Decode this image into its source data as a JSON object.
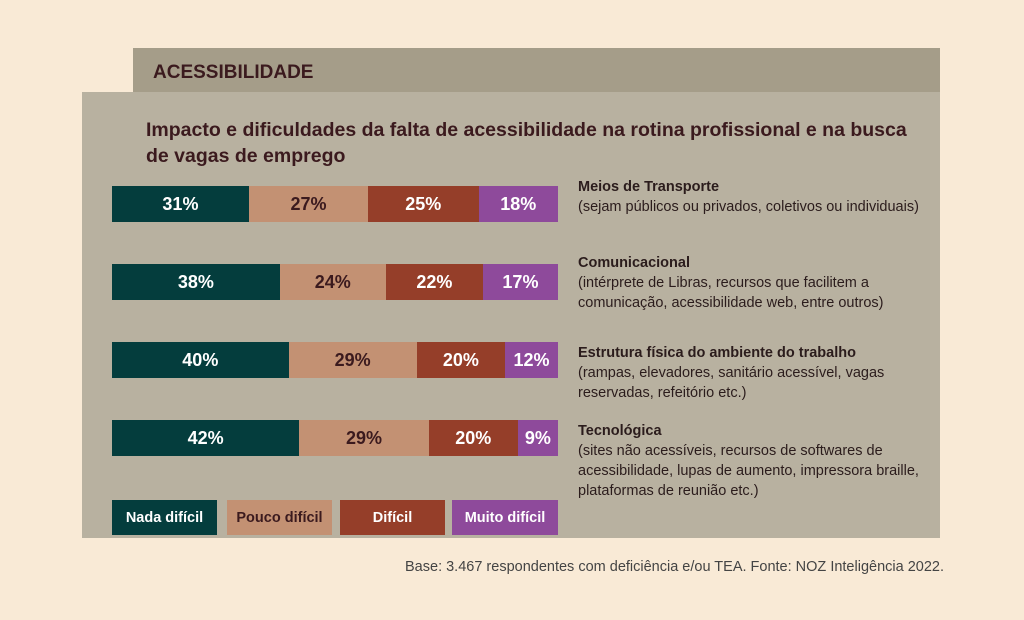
{
  "header": "ACESSIBILIDADE",
  "footer": "Base: 3.467 respondentes com deficiência e/ou TEA. Fonte: NOZ Inteligência 2022.",
  "chart_data": {
    "type": "bar",
    "orientation": "horizontal-stacked-100",
    "title": "Impacto e dificuldades da falta de acessibilidade na rotina profissional e na busca de vagas de emprego",
    "categories": [
      {
        "name": "Meios de Transporte",
        "desc": "(sejam públicos ou privados, coletivos ou individuais)"
      },
      {
        "name": "Comunicacional",
        "desc": "(intérprete de Libras, recursos que facilitem a comunicação, acessibilidade web, entre outros)"
      },
      {
        "name": "Estrutura física do ambiente do trabalho",
        "desc": "(rampas, elevadores, sanitário acessível, vagas reservadas, refeitório etc.)"
      },
      {
        "name": "Tecnológica",
        "desc": "(sites não acessíveis, recursos de softwares de acessibilidade, lupas de aumento, impressora braille, plataformas de reunião etc.)"
      }
    ],
    "series": [
      {
        "name": "Nada difícil",
        "color": "#043d3d",
        "text": "#ffffff",
        "values": [
          31,
          38,
          40,
          42
        ]
      },
      {
        "name": "Pouco difícil",
        "color": "#c39173",
        "text": "#3b1a1e",
        "values": [
          27,
          24,
          29,
          29
        ]
      },
      {
        "name": "Difícil",
        "color": "#953e29",
        "text": "#ffffff",
        "values": [
          25,
          22,
          20,
          20
        ]
      },
      {
        "name": "Muito difícil",
        "color": "#8e4a9b",
        "text": "#ffffff",
        "values": [
          18,
          17,
          12,
          9
        ]
      }
    ],
    "legend": "bottom"
  }
}
